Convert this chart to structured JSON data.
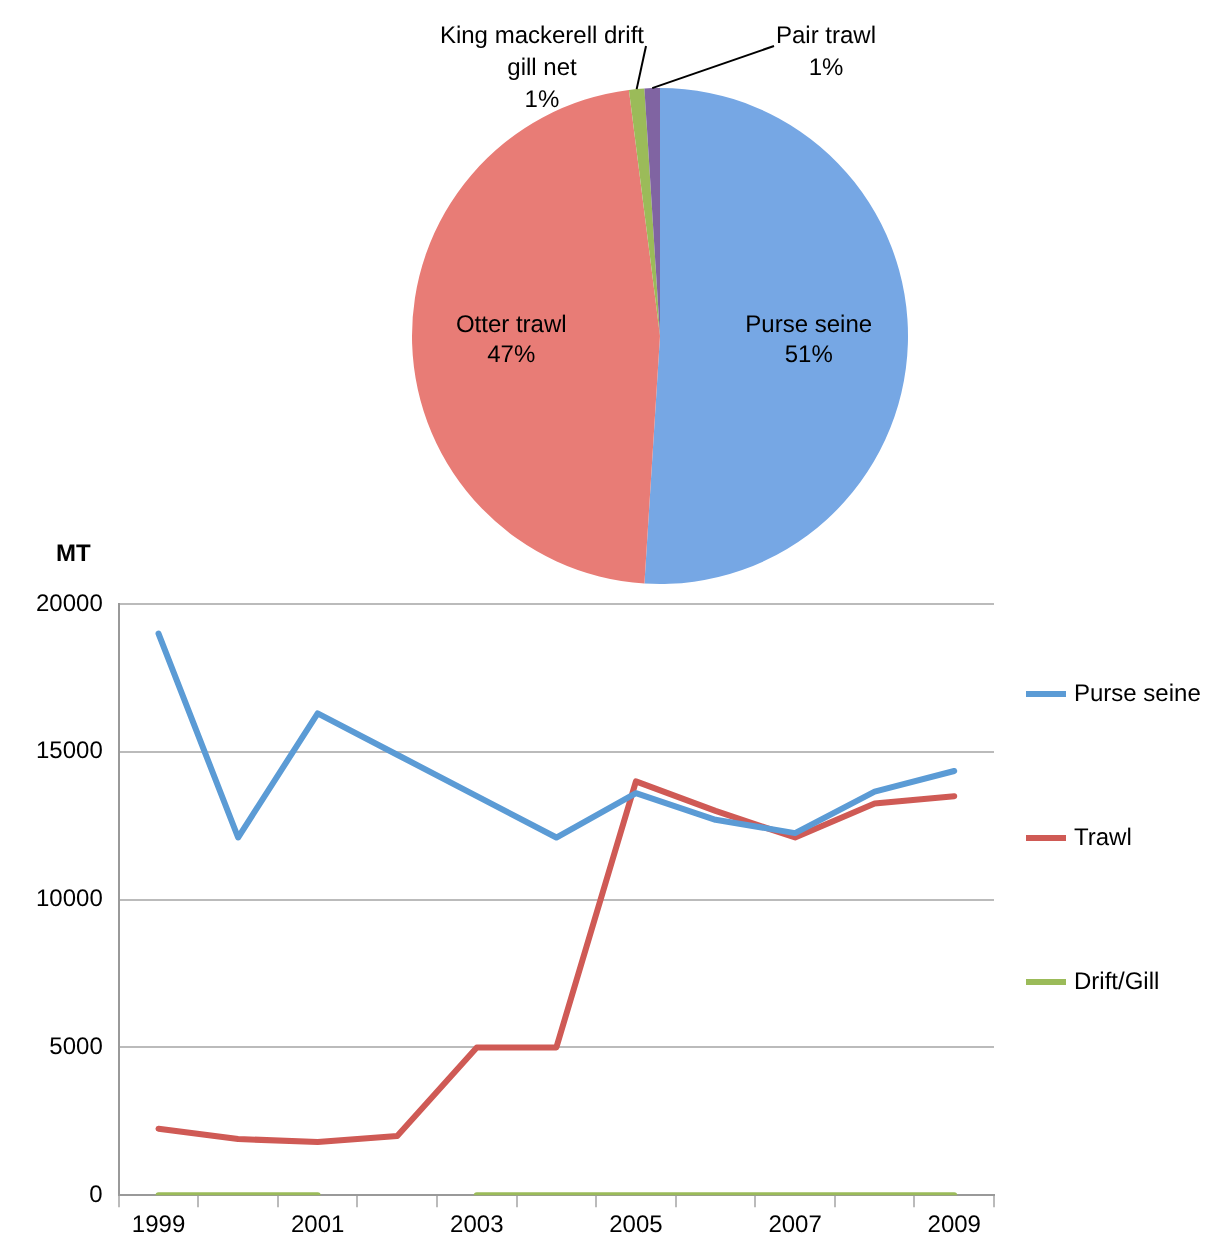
{
  "chart_data": [
    {
      "type": "pie",
      "categories": [
        "Purse seine",
        "Otter trawl",
        "King mackerell drift gill net",
        "Pair trawl"
      ],
      "values": [
        51,
        47,
        1,
        1
      ],
      "colors": [
        "#76a7e4",
        "#e87c76",
        "#9bbb59",
        "#8064a2"
      ],
      "value_labels": [
        "51%",
        "47%",
        "1%",
        "1%"
      ],
      "legend": false
    },
    {
      "type": "line",
      "ylabel": "MT",
      "categories": [
        "1999",
        null,
        "2001",
        null,
        "2003",
        null,
        "2005",
        null,
        "2007",
        null,
        "2009"
      ],
      "series": [
        {
          "name": "Purse seine",
          "color": "#5b9bd5",
          "values": [
            19000,
            12100,
            16300,
            14900,
            13500,
            12100,
            13600,
            12700,
            12250,
            13650,
            14350
          ]
        },
        {
          "name": "Trawl",
          "color": "#cf5a55",
          "values": [
            2250,
            1900,
            1800,
            2000,
            5000,
            5000,
            14000,
            13000,
            12100,
            13250,
            13500
          ]
        },
        {
          "name": "Drift/Gill",
          "color": "#9bbb59",
          "values": [
            0,
            0,
            0,
            null,
            0,
            0,
            0,
            0,
            0,
            0,
            0
          ]
        }
      ],
      "ylim": [
        0,
        20000
      ],
      "yticks": [
        0,
        5000,
        10000,
        15000,
        20000
      ],
      "grid": "y",
      "legend": "right",
      "marker": "none",
      "line_style": "solid"
    }
  ]
}
